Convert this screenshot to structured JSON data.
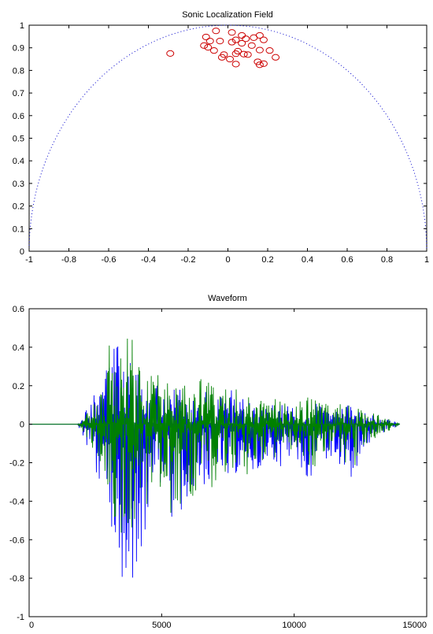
{
  "chart_data": [
    {
      "type": "scatter",
      "title": "Sonic Localization Field",
      "xlabel": "",
      "ylabel": "",
      "xlim": [
        -1,
        1
      ],
      "ylim": [
        0,
        1
      ],
      "xticks": [
        -1,
        -0.8,
        -0.6,
        -0.4,
        -0.2,
        0,
        0.2,
        0.4,
        0.6,
        0.8,
        1
      ],
      "xtick_labels": [
        "-1",
        "-0.8",
        "-0.6",
        "-0.4",
        "-0.2",
        "0",
        "0.2",
        "0.4",
        "0.6",
        "0.8",
        "1"
      ],
      "yticks": [
        0,
        0.1,
        0.2,
        0.3,
        0.4,
        0.5,
        0.6,
        0.7,
        0.8,
        0.9,
        1
      ],
      "ytick_labels": [
        "0",
        "0.1",
        "0.2",
        "0.3",
        "0.4",
        "0.5",
        "0.6",
        "0.7",
        "0.8",
        "0.9",
        "1"
      ],
      "grid": false,
      "series": [
        {
          "marker": "circle",
          "color": "#cc0000",
          "points": [
            [
              -0.06,
              0.975
            ],
            [
              0.02,
              0.968
            ],
            [
              0.16,
              0.955
            ],
            [
              -0.11,
              0.948
            ],
            [
              0.07,
              0.955
            ],
            [
              0.13,
              0.945
            ],
            [
              0.18,
              0.935
            ],
            [
              -0.09,
              0.93
            ],
            [
              -0.04,
              0.93
            ],
            [
              0.04,
              0.935
            ],
            [
              0.09,
              0.94
            ],
            [
              0.02,
              0.925
            ],
            [
              -0.12,
              0.91
            ],
            [
              -0.1,
              0.902
            ],
            [
              0.12,
              0.91
            ],
            [
              0.07,
              0.92
            ],
            [
              -0.07,
              0.888
            ],
            [
              0.05,
              0.885
            ],
            [
              0.16,
              0.89
            ],
            [
              0.21,
              0.888
            ],
            [
              0.04,
              0.874
            ],
            [
              0.08,
              0.872
            ],
            [
              0.1,
              0.87
            ],
            [
              -0.02,
              0.87
            ],
            [
              -0.03,
              0.858
            ],
            [
              0.01,
              0.85
            ],
            [
              -0.29,
              0.875
            ],
            [
              0.24,
              0.858
            ],
            [
              0.15,
              0.838
            ],
            [
              0.18,
              0.83
            ],
            [
              0.16,
              0.825
            ],
            [
              0.04,
              0.828
            ]
          ]
        },
        {
          "marker": "dotted-line",
          "color": "#0000cc",
          "shape": "unit semicircle x^2 + y^2 = 1"
        }
      ]
    },
    {
      "type": "line",
      "title": "Waveform",
      "xlabel": "",
      "ylabel": "",
      "xlim": [
        0,
        15000
      ],
      "ylim": [
        -1,
        0.6
      ],
      "xticks": [
        0,
        5000,
        10000,
        15000
      ],
      "xtick_labels": [
        "0",
        "5000",
        "10000",
        "15000"
      ],
      "yticks": [
        -1,
        -0.8,
        -0.6,
        -0.4,
        -0.2,
        0,
        0.2,
        0.4,
        0.6
      ],
      "ytick_labels": [
        "-1",
        "-0.8",
        "-0.6",
        "-0.4",
        "-0.2",
        "0",
        "0.2",
        "0.4",
        "0.6"
      ],
      "grid": false,
      "series": [
        {
          "color": "#0000ff",
          "envelope": [
            [
              0,
              0,
              0
            ],
            [
              1800,
              0,
              0
            ],
            [
              2000,
              0.03,
              -0.05
            ],
            [
              2300,
              0.12,
              -0.15
            ],
            [
              2600,
              0.2,
              -0.3
            ],
            [
              2900,
              0.3,
              -0.42
            ],
            [
              3100,
              0.5,
              -0.65
            ],
            [
              3300,
              0.48,
              -0.78
            ],
            [
              3500,
              0.4,
              -0.96
            ],
            [
              3700,
              0.42,
              -0.9
            ],
            [
              4000,
              0.3,
              -0.75
            ],
            [
              4500,
              0.25,
              -0.55
            ],
            [
              5000,
              0.22,
              -0.45
            ],
            [
              5500,
              0.2,
              -0.5
            ],
            [
              6000,
              0.17,
              -0.4
            ],
            [
              6500,
              0.22,
              -0.35
            ],
            [
              7000,
              0.16,
              -0.3
            ],
            [
              7500,
              0.18,
              -0.28
            ],
            [
              8000,
              0.17,
              -0.27
            ],
            [
              8500,
              0.15,
              -0.25
            ],
            [
              9000,
              0.1,
              -0.2
            ],
            [
              9500,
              0.12,
              -0.22
            ],
            [
              10000,
              0.08,
              -0.16
            ],
            [
              10500,
              0.13,
              -0.28
            ],
            [
              11000,
              0.1,
              -0.25
            ],
            [
              11500,
              0.07,
              -0.18
            ],
            [
              12000,
              0.1,
              -0.26
            ],
            [
              12300,
              0.09,
              -0.3
            ],
            [
              12700,
              0.06,
              -0.12
            ],
            [
              13200,
              0.04,
              -0.06
            ],
            [
              13700,
              0.02,
              -0.03
            ],
            [
              14000,
              0,
              0
            ]
          ]
        },
        {
          "color": "#008000",
          "envelope": [
            [
              0,
              0,
              0
            ],
            [
              1800,
              0,
              0
            ],
            [
              2000,
              0.02,
              -0.03
            ],
            [
              2300,
              0.08,
              -0.1
            ],
            [
              2600,
              0.15,
              -0.2
            ],
            [
              2900,
              0.3,
              -0.3
            ],
            [
              3100,
              0.5,
              -0.5
            ],
            [
              3300,
              0.45,
              -0.5
            ],
            [
              3500,
              0.46,
              -0.65
            ],
            [
              3700,
              0.48,
              -0.6
            ],
            [
              4000,
              0.42,
              -0.5
            ],
            [
              4500,
              0.3,
              -0.45
            ],
            [
              5000,
              0.25,
              -0.4
            ],
            [
              5500,
              0.22,
              -0.55
            ],
            [
              6000,
              0.2,
              -0.4
            ],
            [
              6500,
              0.26,
              -0.38
            ],
            [
              7000,
              0.2,
              -0.32
            ],
            [
              7500,
              0.22,
              -0.3
            ],
            [
              8000,
              0.2,
              -0.28
            ],
            [
              8500,
              0.17,
              -0.26
            ],
            [
              9000,
              0.12,
              -0.22
            ],
            [
              9500,
              0.14,
              -0.2
            ],
            [
              10000,
              0.1,
              -0.14
            ],
            [
              10500,
              0.15,
              -0.25
            ],
            [
              11000,
              0.12,
              -0.22
            ],
            [
              11500,
              0.09,
              -0.16
            ],
            [
              12000,
              0.12,
              -0.22
            ],
            [
              12300,
              0.11,
              -0.25
            ],
            [
              12700,
              0.07,
              -0.1
            ],
            [
              13200,
              0.05,
              -0.06
            ],
            [
              13700,
              0.02,
              -0.03
            ],
            [
              14000,
              0,
              0
            ]
          ]
        }
      ]
    }
  ]
}
